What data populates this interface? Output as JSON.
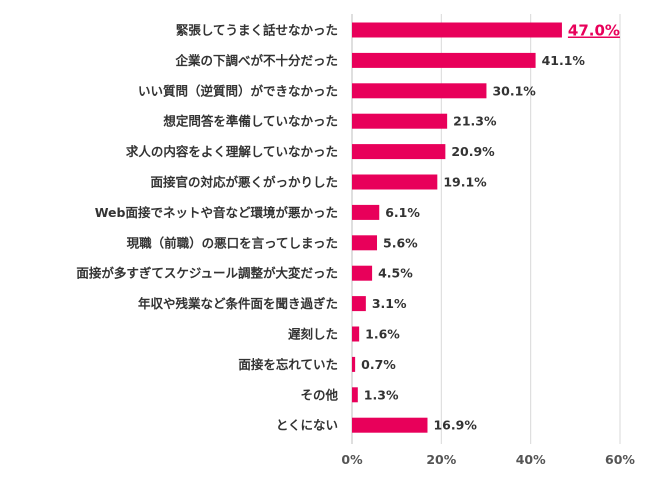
{
  "colors": {
    "bar": "#e8005a",
    "highlight_text": "#e8005a"
  },
  "chart_data": {
    "type": "bar",
    "orientation": "horizontal",
    "categories": [
      "緊張してうまく話せなかった",
      "企業の下調べが不十分だった",
      "いい質問（逆質問）ができなかった",
      "想定問答を準備していなかった",
      "求人の内容をよく理解していなかった",
      "面接官の対応が悪くがっかりした",
      "Web面接でネットや音など環境が悪かった",
      "現職（前職）の悪口を言ってしまった",
      "面接が多すぎてスケジュール調整が大変だった",
      "年収や残業など条件面を聞き過ぎた",
      "遅刻した",
      "面接を忘れていた",
      "その他",
      "とくにない"
    ],
    "values": [
      47.0,
      41.1,
      30.1,
      21.3,
      20.9,
      19.1,
      6.1,
      5.6,
      4.5,
      3.1,
      1.6,
      0.7,
      1.3,
      16.9
    ],
    "value_labels": [
      "47.0%",
      "41.1%",
      "30.1%",
      "21.3%",
      "20.9%",
      "19.1%",
      "6.1%",
      "5.6%",
      "4.5%",
      "3.1%",
      "1.6%",
      "0.7%",
      "1.3%",
      "16.9%"
    ],
    "highlight_index": 0,
    "xlim": [
      0,
      60
    ],
    "xticks": [
      0,
      20,
      40,
      60
    ],
    "xtick_labels": [
      "0%",
      "20%",
      "40%",
      "60%"
    ],
    "grid": true,
    "title": "",
    "xlabel": "",
    "ylabel": ""
  }
}
